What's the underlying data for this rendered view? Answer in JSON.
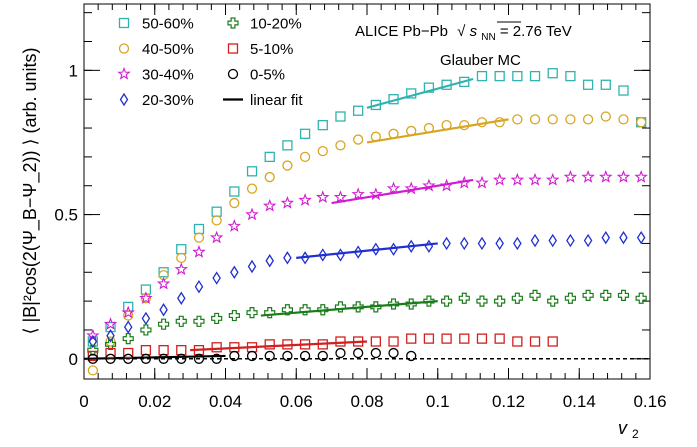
{
  "chart_data": {
    "type": "scatter",
    "xlabel": "v",
    "xlabel_sub": "2",
    "ylabel": "⟨ |B|²cos(2(Ψ_B−Ψ_2)) ⟩ (arb. units)",
    "xlim": [
      0,
      0.16
    ],
    "ylim": [
      -0.07,
      1.23
    ],
    "x_ticks": [
      0,
      0.02,
      0.04,
      0.06,
      0.08,
      0.1,
      0.12,
      0.14,
      0.16
    ],
    "x_tick_labels": [
      "0",
      "0.02",
      "0.04",
      "0.06",
      "0.08",
      "0.1",
      "0.12",
      "0.14",
      "0.16"
    ],
    "y_ticks": [
      0,
      0.5,
      1
    ],
    "y_tick_labels": [
      "0",
      "0.5",
      "1"
    ],
    "annotation": {
      "line1_prefix": "ALICE Pb−Pb",
      "sqrt_symbol": "√",
      "s_var": "s",
      "s_sub": "NN",
      "line1_suffix": " = 2.76 TeV",
      "line2": "Glauber MC"
    },
    "series": [
      {
        "name": "50-60%",
        "marker": "square",
        "color": "#2fb3b0",
        "x": [
          0.0025,
          0.0075,
          0.0125,
          0.0175,
          0.0225,
          0.0275,
          0.0325,
          0.0375,
          0.0425,
          0.0475,
          0.0525,
          0.0575,
          0.0625,
          0.0675,
          0.0725,
          0.0775,
          0.0825,
          0.0875,
          0.0925,
          0.0975,
          0.1025,
          0.1075,
          0.1125,
          0.1175,
          0.1225,
          0.1275,
          0.1325,
          0.1375,
          0.1425,
          0.1475,
          0.1525,
          0.1575
        ],
        "y": [
          0.06,
          0.11,
          0.18,
          0.24,
          0.3,
          0.38,
          0.45,
          0.51,
          0.58,
          0.65,
          0.7,
          0.74,
          0.78,
          0.81,
          0.84,
          0.86,
          0.88,
          0.9,
          0.92,
          0.94,
          0.95,
          0.96,
          0.98,
          0.98,
          0.98,
          0.98,
          0.99,
          0.98,
          0.95,
          0.95,
          0.93,
          0.82
        ],
        "fit": {
          "x": [
            0.08,
            0.11
          ],
          "y": [
            0.87,
            0.97
          ]
        }
      },
      {
        "name": "40-50%",
        "marker": "circle",
        "color": "#d9a520",
        "x": [
          0.0025,
          0.0075,
          0.0125,
          0.0175,
          0.0225,
          0.0275,
          0.0325,
          0.0375,
          0.0425,
          0.0475,
          0.0525,
          0.0575,
          0.0625,
          0.0675,
          0.0725,
          0.0775,
          0.0825,
          0.0875,
          0.0925,
          0.0975,
          0.1025,
          0.1075,
          0.1125,
          0.1175,
          0.1225,
          0.1275,
          0.1325,
          0.1375,
          0.1425,
          0.1475,
          0.1525,
          0.1575
        ],
        "y": [
          -0.04,
          0.06,
          0.15,
          0.21,
          0.29,
          0.35,
          0.42,
          0.48,
          0.54,
          0.59,
          0.63,
          0.67,
          0.7,
          0.72,
          0.74,
          0.76,
          0.77,
          0.78,
          0.79,
          0.8,
          0.81,
          0.81,
          0.82,
          0.82,
          0.83,
          0.83,
          0.83,
          0.83,
          0.83,
          0.84,
          0.83,
          0.82
        ],
        "fit": {
          "x": [
            0.08,
            0.12
          ],
          "y": [
            0.75,
            0.83
          ]
        }
      },
      {
        "name": "30-40%",
        "marker": "star",
        "color": "#d21bd2",
        "x": [
          0.0025,
          0.0075,
          0.0125,
          0.0175,
          0.0225,
          0.0275,
          0.0325,
          0.0375,
          0.0425,
          0.0475,
          0.0525,
          0.0575,
          0.0625,
          0.0675,
          0.0725,
          0.0775,
          0.0825,
          0.0875,
          0.0925,
          0.0975,
          0.1025,
          0.1075,
          0.1125,
          0.1175,
          0.1225,
          0.1275,
          0.1325,
          0.1375,
          0.1425,
          0.1475,
          0.1525,
          0.1575
        ],
        "y": [
          0.08,
          0.12,
          0.16,
          0.21,
          0.26,
          0.31,
          0.37,
          0.42,
          0.46,
          0.5,
          0.53,
          0.54,
          0.55,
          0.56,
          0.56,
          0.57,
          0.57,
          0.59,
          0.59,
          0.6,
          0.6,
          0.61,
          0.61,
          0.62,
          0.62,
          0.62,
          0.62,
          0.63,
          0.63,
          0.63,
          0.63,
          0.63
        ],
        "fit": {
          "x": [
            0.07,
            0.11
          ],
          "y": [
            0.54,
            0.62
          ]
        }
      },
      {
        "name": "20-30%",
        "marker": "diamond",
        "color": "#1f2fd0",
        "x": [
          0.0025,
          0.0075,
          0.0125,
          0.0175,
          0.0225,
          0.0275,
          0.0325,
          0.0375,
          0.0425,
          0.0475,
          0.0525,
          0.0575,
          0.0625,
          0.0675,
          0.0725,
          0.0775,
          0.0825,
          0.0875,
          0.0925,
          0.0975,
          0.1025,
          0.1075,
          0.1125,
          0.1175,
          0.1225,
          0.1275,
          0.1325,
          0.1375,
          0.1425,
          0.1475,
          0.1525,
          0.1575
        ],
        "y": [
          0.06,
          0.08,
          0.11,
          0.14,
          0.17,
          0.21,
          0.25,
          0.28,
          0.3,
          0.32,
          0.34,
          0.35,
          0.35,
          0.36,
          0.36,
          0.37,
          0.38,
          0.38,
          0.39,
          0.39,
          0.4,
          0.4,
          0.4,
          0.4,
          0.4,
          0.41,
          0.41,
          0.41,
          0.41,
          0.42,
          0.42,
          0.42
        ],
        "fit": {
          "x": [
            0.06,
            0.1
          ],
          "y": [
            0.35,
            0.4
          ]
        }
      },
      {
        "name": "10-20%",
        "marker": "cross",
        "color": "#1a7d1a",
        "x": [
          0.0025,
          0.0075,
          0.0125,
          0.0175,
          0.0225,
          0.0275,
          0.0325,
          0.0375,
          0.0425,
          0.0475,
          0.0525,
          0.0575,
          0.0625,
          0.0675,
          0.0725,
          0.0775,
          0.0825,
          0.0875,
          0.0925,
          0.0975,
          0.1025,
          0.1075,
          0.1125,
          0.1175,
          0.1225,
          0.1275,
          0.1325,
          0.1375,
          0.1425,
          0.1475,
          0.1525,
          0.1575
        ],
        "y": [
          0.03,
          0.05,
          0.07,
          0.1,
          0.12,
          0.13,
          0.13,
          0.14,
          0.15,
          0.16,
          0.16,
          0.17,
          0.17,
          0.17,
          0.18,
          0.18,
          0.18,
          0.19,
          0.19,
          0.2,
          0.2,
          0.21,
          0.2,
          0.2,
          0.21,
          0.22,
          0.2,
          0.21,
          0.22,
          0.22,
          0.22,
          0.21
        ],
        "fit": {
          "x": [
            0.05,
            0.1
          ],
          "y": [
            0.15,
            0.2
          ]
        }
      },
      {
        "name": "5-10%",
        "marker": "square",
        "color": "#d02020",
        "x": [
          0.0025,
          0.0075,
          0.0125,
          0.0175,
          0.0225,
          0.0275,
          0.0325,
          0.0375,
          0.0425,
          0.0475,
          0.0525,
          0.0575,
          0.0625,
          0.0675,
          0.0725,
          0.0775,
          0.0825,
          0.0875,
          0.0925,
          0.0975,
          0.1025,
          0.1075,
          0.1125,
          0.1175,
          0.1225,
          0.1275,
          0.1325
        ],
        "y": [
          0.01,
          0.02,
          0.02,
          0.03,
          0.03,
          0.03,
          0.03,
          0.04,
          0.04,
          0.04,
          0.05,
          0.05,
          0.05,
          0.05,
          0.06,
          0.06,
          0.06,
          0.06,
          0.07,
          0.07,
          0.07,
          0.07,
          0.07,
          0.07,
          0.06,
          0.06,
          0.06
        ],
        "fit": {
          "x": [
            0.03,
            0.08
          ],
          "y": [
            0.03,
            0.06
          ]
        }
      },
      {
        "name": "0-5%",
        "marker": "circle",
        "color": "#000000",
        "x": [
          0.0025,
          0.0075,
          0.0125,
          0.0175,
          0.0225,
          0.0275,
          0.0325,
          0.0375,
          0.0425,
          0.0475,
          0.0525,
          0.0575,
          0.0625,
          0.0675,
          0.0725,
          0.0775,
          0.0825,
          0.0875,
          0.0925
        ],
        "y": [
          0.0,
          0.0,
          0.0,
          0.0,
          0.0,
          0.0,
          0.0,
          0.0,
          0.01,
          0.01,
          0.01,
          0.01,
          0.01,
          0.01,
          0.02,
          0.02,
          0.02,
          0.02,
          0.01
        ],
        "fit": {
          "x": [
            0.0,
            0.04
          ],
          "y": [
            0.0,
            0.01
          ]
        }
      }
    ],
    "legend": {
      "placement": "top-left",
      "entries": [
        {
          "series": 0,
          "label": "50-60%"
        },
        {
          "series": 4,
          "label": "10-20%"
        },
        {
          "series": 1,
          "label": "40-50%"
        },
        {
          "series": 5,
          "label": "5-10%"
        },
        {
          "series": 2,
          "label": "30-40%"
        },
        {
          "series": 6,
          "label": "0-5%"
        },
        {
          "series": 3,
          "label": "20-30%"
        },
        {
          "series": -1,
          "label": "linear fit"
        }
      ]
    },
    "zero_line": "dashed"
  }
}
